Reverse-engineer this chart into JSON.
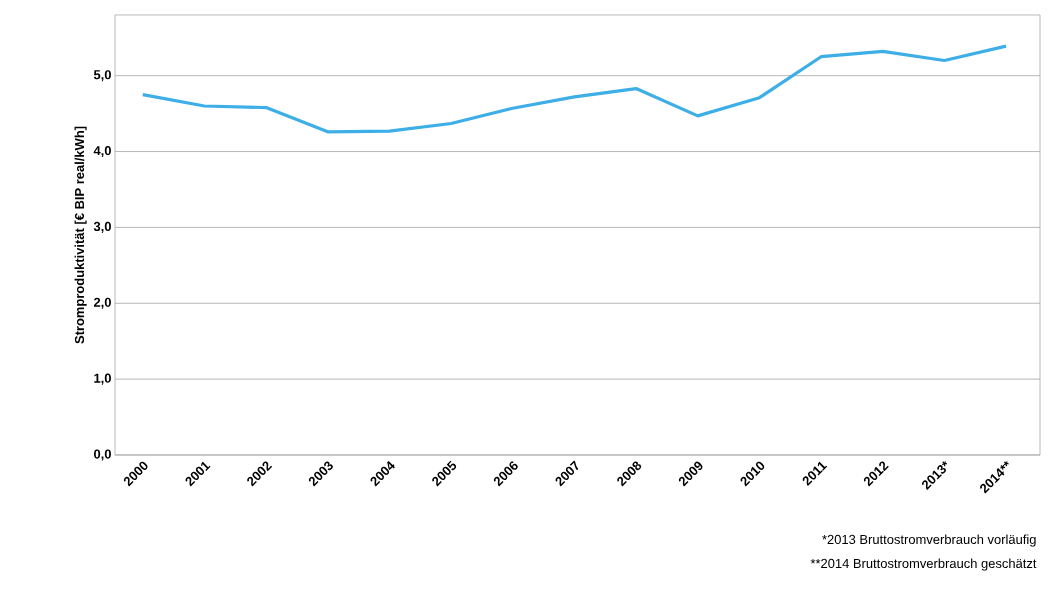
{
  "chart_data": {
    "type": "line",
    "ylabel": "Stromproduktivität [€ BIP real/kWh]",
    "categories": [
      "2000",
      "2001",
      "2002",
      "2003",
      "2004",
      "2005",
      "2006",
      "2007",
      "2008",
      "2009",
      "2010",
      "2011",
      "2012",
      "2013*",
      "2014**"
    ],
    "series": [
      {
        "color": "#3daee6",
        "values": [
          4.75,
          4.6,
          4.58,
          4.26,
          4.27,
          4.37,
          4.57,
          4.72,
          4.83,
          4.47,
          4.71,
          5.25,
          5.32,
          5.2,
          5.39
        ]
      }
    ],
    "ylim": [
      0,
      5.8
    ],
    "yticks": [
      {
        "value": 0,
        "label": "0,0"
      },
      {
        "value": 1,
        "label": "1,0"
      },
      {
        "value": 2,
        "label": "2,0"
      },
      {
        "value": 3,
        "label": "3,0"
      },
      {
        "value": 4,
        "label": "4,0"
      },
      {
        "value": 5,
        "label": "5,0"
      }
    ],
    "grid": "y",
    "marker": "none",
    "line_style": "solid",
    "annotations": [
      "*2013 Bruttostromverbrauch vorläufig",
      "**2014 Bruttostromverbrauch geschätzt"
    ]
  }
}
